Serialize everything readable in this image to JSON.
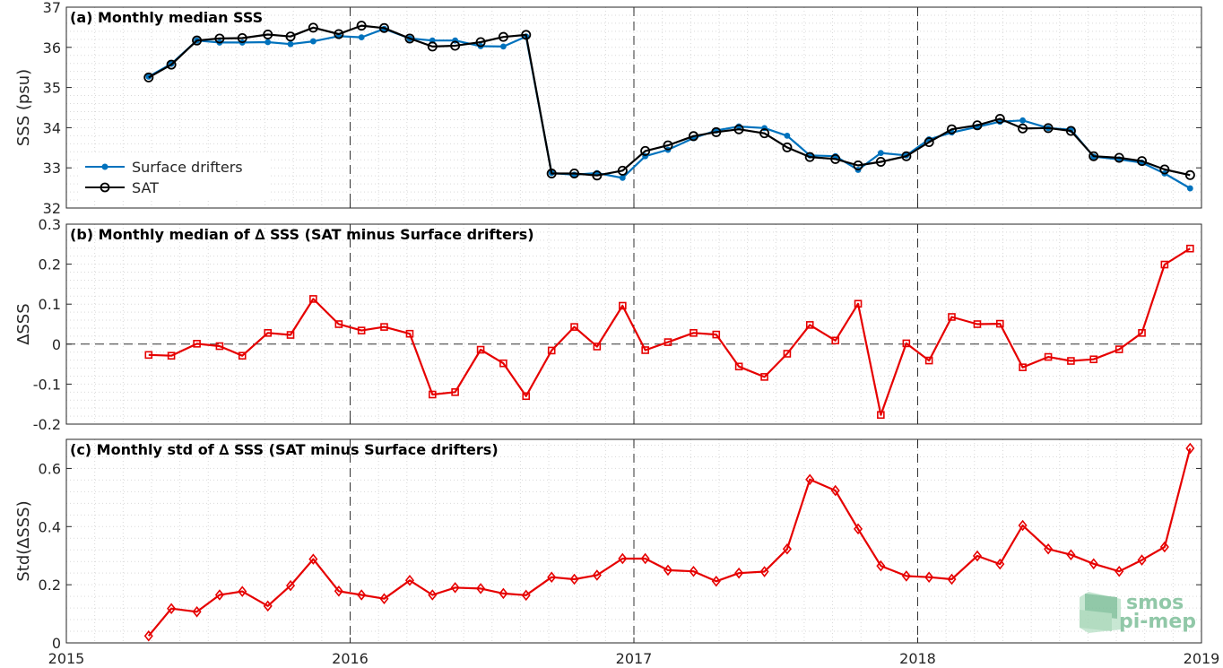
{
  "colors": {
    "drifters": "#0072BD",
    "sat": "#000000",
    "delta": "#e60000",
    "grid": "#d9d9d9",
    "axis": "#262626",
    "logo": "#7ebf9a"
  },
  "x_axis": {
    "range": [
      2015,
      2019
    ],
    "ticks": [
      2015,
      2016,
      2017,
      2018,
      2019
    ],
    "tick_labels": [
      "2015",
      "2016",
      "2017",
      "2018",
      "2019"
    ],
    "year_dividers": [
      2016,
      2017,
      2018
    ]
  },
  "logo": {
    "line1": "smos",
    "line2": "pi-mep",
    "icon": "smos-pi-mep-logo-icon"
  },
  "chart_data": [
    {
      "type": "line",
      "title": "(a) Monthly median SSS",
      "xlabel": "",
      "ylabel": "SSS (psu)",
      "ylim": [
        32,
        37
      ],
      "yticks": [
        32,
        33,
        34,
        35,
        36,
        37
      ],
      "grid": true,
      "legend_placement": "lower-left",
      "x": [
        2015.29,
        2015.37,
        2015.46,
        2015.54,
        2015.62,
        2015.71,
        2015.79,
        2015.87,
        2015.96,
        2016.04,
        2016.12,
        2016.21,
        2016.29,
        2016.37,
        2016.46,
        2016.54,
        2016.62,
        2016.71,
        2016.79,
        2016.87,
        2016.96,
        2017.04,
        2017.12,
        2017.21,
        2017.29,
        2017.37,
        2017.46,
        2017.54,
        2017.62,
        2017.71,
        2017.79,
        2017.87,
        2017.96,
        2018.04,
        2018.12,
        2018.21,
        2018.29,
        2018.37,
        2018.46,
        2018.54,
        2018.62,
        2018.71,
        2018.79,
        2018.87,
        2018.96
      ],
      "series": [
        {
          "name": "Surface drifters",
          "marker": "dot",
          "values": [
            35.27,
            35.59,
            36.17,
            36.12,
            36.12,
            36.13,
            36.08,
            36.15,
            36.28,
            36.25,
            36.46,
            36.22,
            36.17,
            36.17,
            36.03,
            36.02,
            36.27,
            32.87,
            32.83,
            32.87,
            32.75,
            33.29,
            33.45,
            33.74,
            33.93,
            34.03,
            33.99,
            33.8,
            33.31,
            33.29,
            32.95,
            33.37,
            33.31,
            33.71,
            33.88,
            34.02,
            34.15,
            34.18,
            33.99,
            33.95,
            33.28,
            33.21,
            33.13,
            32.86,
            32.49
          ]
        },
        {
          "name": "SAT",
          "marker": "circle",
          "values": [
            35.25,
            35.57,
            36.17,
            36.22,
            36.23,
            36.32,
            36.27,
            36.49,
            36.33,
            36.54,
            36.48,
            36.22,
            36.02,
            36.04,
            36.13,
            36.26,
            36.31,
            32.86,
            32.86,
            32.81,
            32.93,
            33.42,
            33.56,
            33.79,
            33.89,
            33.96,
            33.86,
            33.51,
            33.27,
            33.22,
            33.06,
            33.15,
            33.29,
            33.64,
            33.96,
            34.06,
            34.22,
            33.98,
            33.99,
            33.92,
            33.29,
            33.25,
            33.17,
            32.96,
            32.82
          ]
        }
      ]
    },
    {
      "type": "line",
      "title": "(b) Monthly median of ∆ SSS (SAT minus Surface drifters)",
      "xlabel": "",
      "ylabel": "∆SSS",
      "ylim": [
        -0.2,
        0.3
      ],
      "yticks": [
        -0.2,
        -0.1,
        0,
        0.1,
        0.2,
        0.3
      ],
      "ytick_labels": [
        "-0.2",
        "-0.1",
        "0",
        "0.1",
        "0.2",
        "0.3"
      ],
      "grid": true,
      "zero_line": true,
      "series": [
        {
          "marker": "square",
          "values": [
            -0.027,
            -0.029,
            0.001,
            -0.005,
            -0.029,
            0.028,
            0.023,
            0.113,
            0.05,
            0.034,
            0.043,
            0.026,
            -0.126,
            -0.12,
            -0.014,
            -0.048,
            -0.13,
            -0.016,
            0.043,
            -0.006,
            0.096,
            -0.015,
            0.005,
            0.028,
            0.024,
            -0.056,
            -0.082,
            -0.024,
            0.048,
            0.009,
            0.101,
            -0.177,
            0.002,
            -0.041,
            0.068,
            0.05,
            0.051,
            -0.058,
            -0.032,
            -0.042,
            -0.038,
            -0.013,
            0.028,
            0.199,
            0.239
          ]
        }
      ]
    },
    {
      "type": "line",
      "title": "(c) Monthly std of ∆ SSS (SAT minus Surface drifters)",
      "xlabel": "",
      "ylabel": "Std(∆SSS)",
      "ylim": [
        0,
        0.7
      ],
      "yticks": [
        0,
        0.2,
        0.4,
        0.6
      ],
      "ytick_labels": [
        "0",
        "0.2",
        "0.4",
        "0.6"
      ],
      "grid": true,
      "series": [
        {
          "marker": "diamond",
          "values": [
            0.024,
            0.118,
            0.107,
            0.165,
            0.177,
            0.127,
            0.197,
            0.288,
            0.178,
            0.165,
            0.152,
            0.215,
            0.165,
            0.19,
            0.187,
            0.17,
            0.164,
            0.226,
            0.219,
            0.233,
            0.29,
            0.29,
            0.25,
            0.246,
            0.212,
            0.24,
            0.245,
            0.323,
            0.562,
            0.524,
            0.392,
            0.265,
            0.23,
            0.226,
            0.219,
            0.299,
            0.271,
            0.404,
            0.323,
            0.303,
            0.272,
            0.246,
            0.285,
            0.33,
            0.669
          ]
        }
      ]
    }
  ]
}
